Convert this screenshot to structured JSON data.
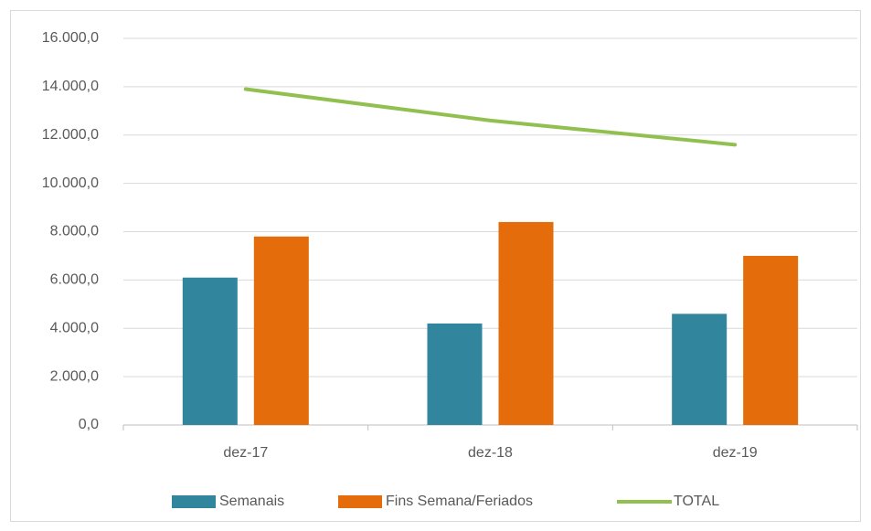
{
  "chart_data": {
    "type": "bar_line",
    "categories": [
      "dez-17",
      "dez-18",
      "dez-19"
    ],
    "series": [
      {
        "name": "Semanais",
        "type": "bar",
        "color": "#31859c",
        "values": [
          6100,
          4200,
          4600
        ]
      },
      {
        "name": "Fins Semana/Feriados",
        "type": "bar",
        "color": "#e46c0a",
        "values": [
          7800,
          8400,
          7000
        ]
      },
      {
        "name": "TOTAL",
        "type": "line",
        "color": "#92c050",
        "values": [
          13900,
          12600,
          11600
        ]
      }
    ],
    "ylim": [
      0,
      16000
    ],
    "yticks": [
      {
        "value": 0,
        "label": "0,0"
      },
      {
        "value": 2000,
        "label": "2.000,0"
      },
      {
        "value": 4000,
        "label": "4.000,0"
      },
      {
        "value": 6000,
        "label": "6.000,0"
      },
      {
        "value": 8000,
        "label": "8.000,0"
      },
      {
        "value": 10000,
        "label": "10.000,0"
      },
      {
        "value": 12000,
        "label": "12.000,0"
      },
      {
        "value": 14000,
        "label": "14.000,0"
      },
      {
        "value": 16000,
        "label": "16.000,0"
      }
    ],
    "grid": true,
    "legend": "bottom"
  }
}
